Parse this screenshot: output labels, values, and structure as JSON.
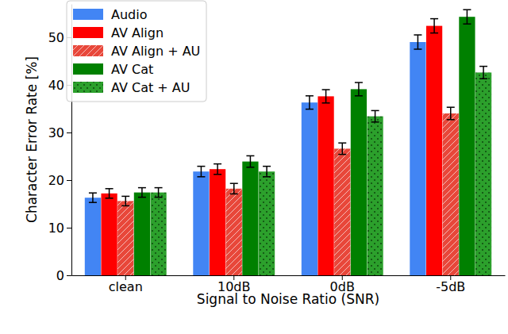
{
  "chart_data": {
    "type": "bar",
    "x_label": "Signal to Noise Ratio (SNR)",
    "y_label": "Character Error Rate [%]",
    "categories": [
      "clean",
      "10dB",
      "0dB",
      "-5dB"
    ],
    "series": [
      {
        "name": "Audio",
        "color": "#4285f4",
        "values": [
          16.3,
          21.8,
          36.3,
          49.0
        ],
        "errors": [
          1.0,
          1.1,
          1.4,
          1.5
        ]
      },
      {
        "name": "AV Align",
        "color": "#ff0000",
        "values": [
          17.2,
          22.3,
          37.6,
          52.4
        ],
        "errors": [
          1.0,
          1.1,
          1.4,
          1.5
        ]
      },
      {
        "name": "AV Align + AU",
        "color": "#e8473a",
        "values": [
          15.6,
          18.2,
          26.6,
          34.0
        ],
        "errors": [
          1.0,
          1.1,
          1.2,
          1.3
        ]
      },
      {
        "name": "AV Cat",
        "color": "#008000",
        "values": [
          17.4,
          23.9,
          39.1,
          54.3
        ],
        "errors": [
          1.0,
          1.2,
          1.4,
          1.5
        ]
      },
      {
        "name": "AV Cat + AU",
        "color": "#2ca02c",
        "values": [
          17.4,
          21.8,
          33.4,
          42.6
        ],
        "errors": [
          1.0,
          1.1,
          1.2,
          1.3
        ]
      }
    ],
    "ylim": [
      0,
      57
    ],
    "yticks": [
      0,
      10,
      20,
      30,
      40,
      50
    ],
    "grid": false,
    "legend": "upper left"
  }
}
